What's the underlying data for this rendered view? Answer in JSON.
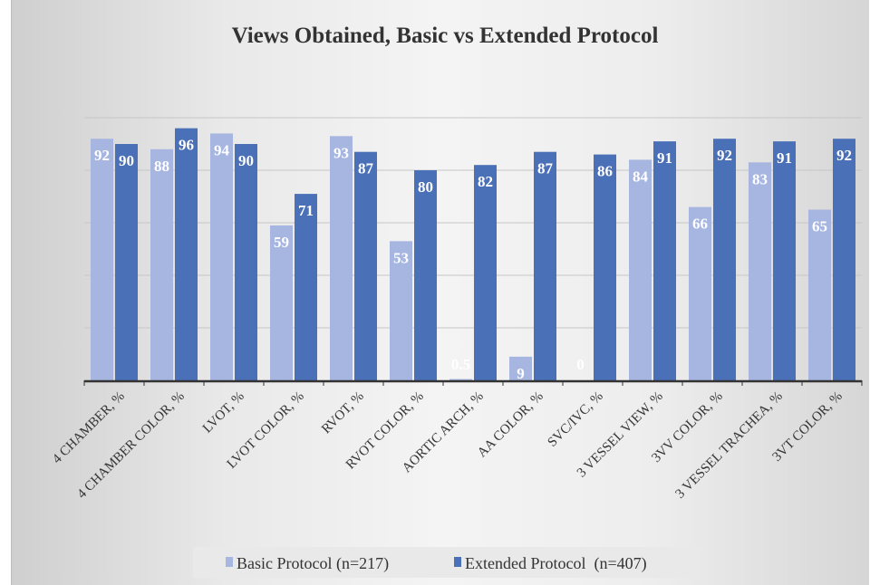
{
  "chart_data": {
    "type": "bar",
    "title": "Views Obtained, Basic vs Extended Protocol",
    "xlabel": "",
    "ylabel": "",
    "ylim": [
      0,
      100
    ],
    "grid": true,
    "legend_position": "bottom",
    "categories": [
      "4 CHAMBER, %",
      "4 CHAMBER COLOR, %",
      "LVOT, %",
      "LVOT COLOR, %",
      "RVOT, %",
      "RVOT COLOR, %",
      "AORTIC ARCH, %",
      "AA COLOR, %",
      "SVC/IVC, %",
      "3 VESSEL VIEW, %",
      "3VV COLOR, %",
      "3 VESSEL TRACHEA, %",
      "3VT COLOR, %"
    ],
    "series": [
      {
        "name": "Basic Protocol (n=217)",
        "color": "#a7b6e0",
        "values": [
          92,
          88,
          94,
          59,
          93,
          53,
          0.5,
          9,
          0,
          84,
          66,
          83,
          65
        ],
        "labels": [
          "92",
          "88",
          "94",
          "59",
          "93",
          "53",
          "0.5",
          "9",
          "0",
          "84",
          "66",
          "83",
          "65"
        ]
      },
      {
        "name": "Extended Protocol  (n=407)",
        "color": "#4a70b8",
        "values": [
          90,
          96,
          90,
          71,
          87,
          80,
          82,
          87,
          86,
          91,
          92,
          91,
          92
        ],
        "labels": [
          "90",
          "96",
          "90",
          "71",
          "87",
          "80",
          "82",
          "87",
          "86",
          "91",
          "92",
          "91",
          "92"
        ]
      }
    ]
  }
}
